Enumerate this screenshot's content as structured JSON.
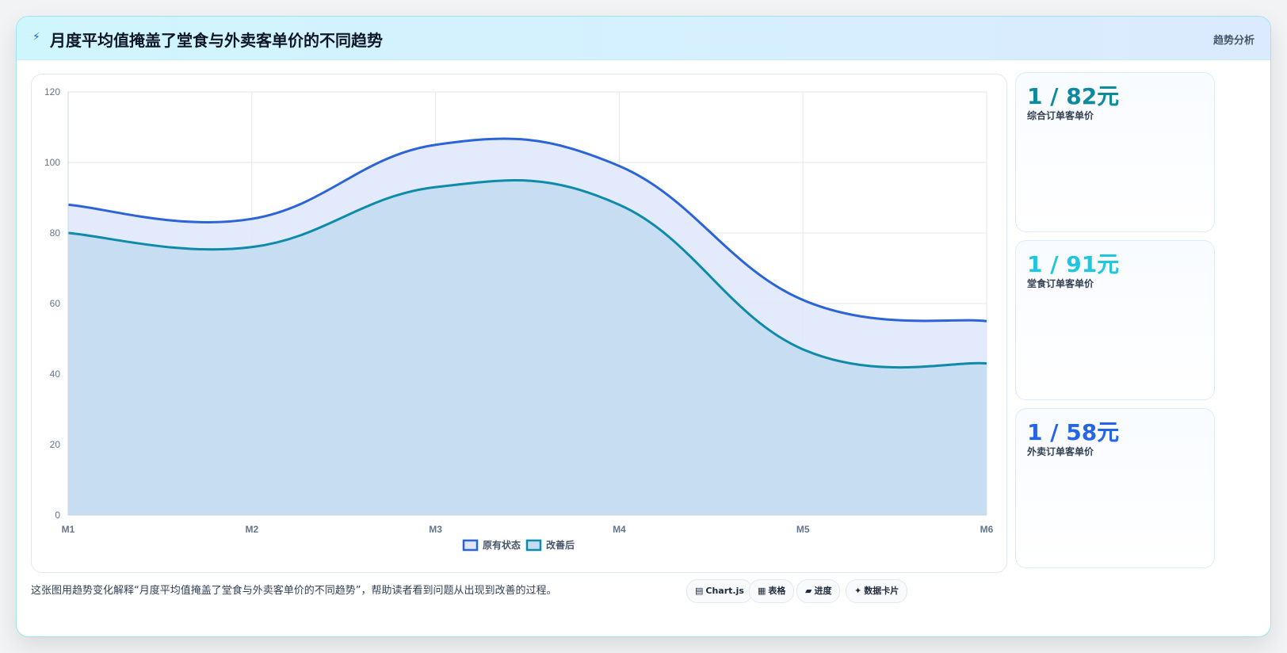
{
  "header": {
    "icon": "lightning-icon",
    "title": "月度平均值掩盖了堂食与外卖客单价的不同趋势",
    "tag": "趋势分析"
  },
  "stats": [
    {
      "value": "1 / 82元",
      "label": "综合订单客单价",
      "color": "#0e8a9e"
    },
    {
      "value": "1 / 91元",
      "label": "堂食订单客单价",
      "color": "#22c5e0"
    },
    {
      "value": "1 / 58元",
      "label": "外卖订单客单价",
      "color": "#2563eb"
    }
  ],
  "footer": {
    "text": "这张图用趋势变化解释“月度平均值掩盖了堂食与外卖客单价的不同趋势”，帮助读者看到问题从出现到改善的过程。",
    "pills": [
      {
        "icon": "chart-icon",
        "glyph": "▤",
        "label": "Chart.js"
      },
      {
        "icon": "table-icon",
        "glyph": "▦",
        "label": "表格"
      },
      {
        "icon": "progress-icon",
        "glyph": "▰",
        "label": "进度"
      },
      {
        "icon": "data-card-icon",
        "glyph": "✦",
        "label": "数据卡片"
      }
    ]
  },
  "chart_data": {
    "type": "area",
    "categories": [
      "M1",
      "M2",
      "M3",
      "M4",
      "M5",
      "M6"
    ],
    "series": [
      {
        "name": "原有状态",
        "values": [
          88,
          84,
          105,
          99,
          61,
          55
        ],
        "color": "#2b63d9",
        "fill": "#dfe8fb"
      },
      {
        "name": "改善后",
        "values": [
          80,
          76,
          93,
          88,
          47,
          43
        ],
        "color": "#0e8aaa",
        "fill": "#c4dcf1"
      }
    ],
    "ylim": [
      0,
      120
    ],
    "yticks": [
      0,
      20,
      40,
      60,
      80,
      100,
      120
    ],
    "grid": true,
    "legend_position": "bottom-center",
    "title": "",
    "xlabel": "",
    "ylabel": ""
  }
}
